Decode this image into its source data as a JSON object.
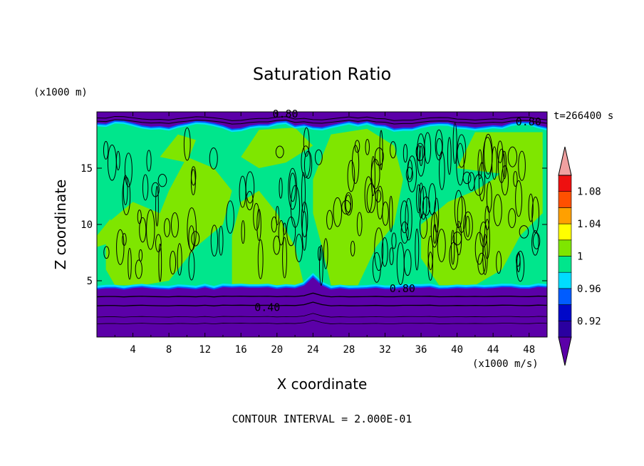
{
  "chart_data": {
    "type": "heatmap",
    "title": "Saturation Ratio",
    "xlabel": "X coordinate",
    "ylabel": "Z coordinate",
    "x_unit": "(x1000 m/s)",
    "y_unit": "(x1000 m)",
    "time_label": "t=266400 s",
    "footer": "CONTOUR INTERVAL = 2.000E-01",
    "xlim": [
      0,
      50
    ],
    "ylim": [
      0,
      20
    ],
    "x_ticks": [
      "4",
      "8",
      "12",
      "16",
      "20",
      "24",
      "28",
      "32",
      "36",
      "40",
      "44",
      "48"
    ],
    "y_ticks": [
      "5",
      "10",
      "15"
    ],
    "contour_labels": [
      "0.80",
      "0.80",
      "0.80",
      "0.40"
    ],
    "colorbar": {
      "levels": [
        0.9,
        0.92,
        0.94,
        0.96,
        0.98,
        1.0,
        1.02,
        1.04,
        1.06,
        1.08,
        1.1
      ],
      "tick_labels": [
        "0.92",
        "0.96",
        "1",
        "1.04",
        "1.08"
      ],
      "colors": [
        "#5b00a8",
        "#2a00a0",
        "#0008c8",
        "#005cff",
        "#00dcff",
        "#00e68c",
        "#7fe600",
        "#ffff00",
        "#ffa000",
        "#ff5000",
        "#ee1010",
        "#f0a0a0"
      ]
    },
    "regions": {
      "lower_dry_layer": {
        "z_top": 4.4,
        "value": "< 0.90"
      },
      "upper_dry_layer": {
        "z_bottom": 18.8,
        "value": "< 0.90"
      },
      "middle_layer": {
        "z_range": [
          4.4,
          18.8
        ],
        "value": "0.98 - 1.02"
      }
    }
  }
}
